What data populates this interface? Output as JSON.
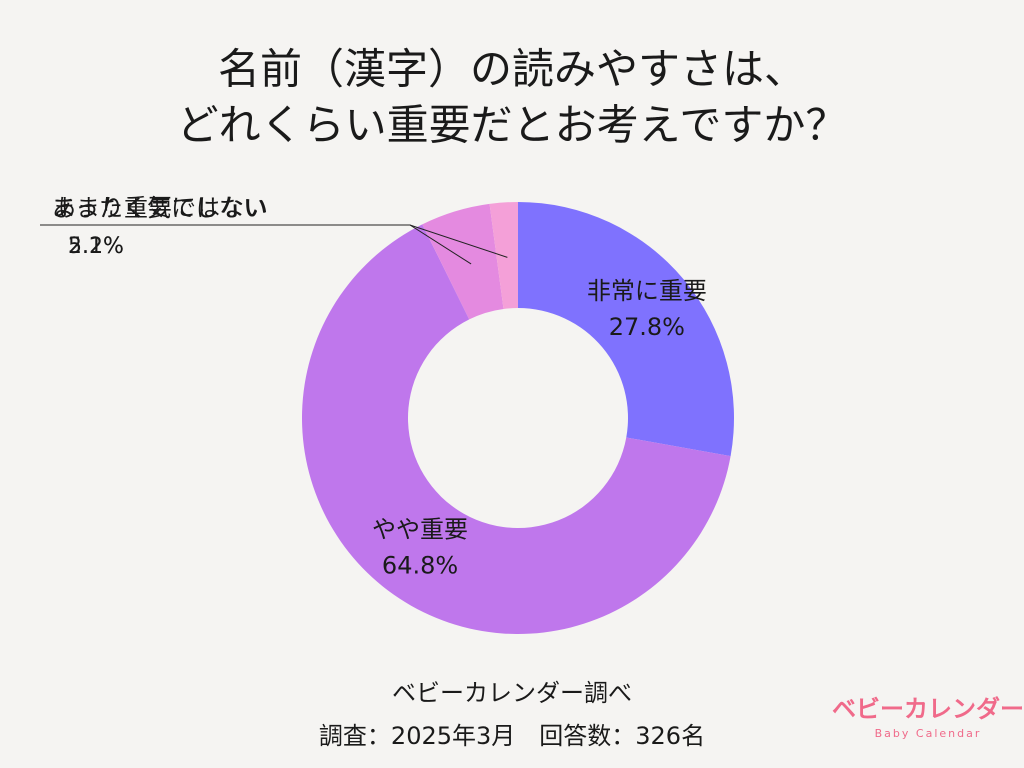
{
  "chart_data": {
    "type": "donut",
    "title": [
      "名前（漢字）の読みやすさは、",
      "どれくらい重要だとお考えですか？"
    ],
    "categories": [
      "非常に重要",
      "やや重要",
      "あまり重要ではない",
      "まったく気にしない"
    ],
    "values": [
      27.8,
      64.8,
      5.2,
      2.1
    ],
    "value_labels": [
      "27.8%",
      "64.8%",
      "5.2%",
      "2.1%"
    ],
    "colors": [
      "#7f72fe",
      "#bf77ec",
      "#e48ae0",
      "#f4a0d8"
    ],
    "source": "ベビーカレンダー調べ",
    "note": "調査：2025年3月　回答数：326名",
    "logo": {
      "text": "ベビーカレンダー",
      "subtext": "Baby Calendar"
    }
  }
}
